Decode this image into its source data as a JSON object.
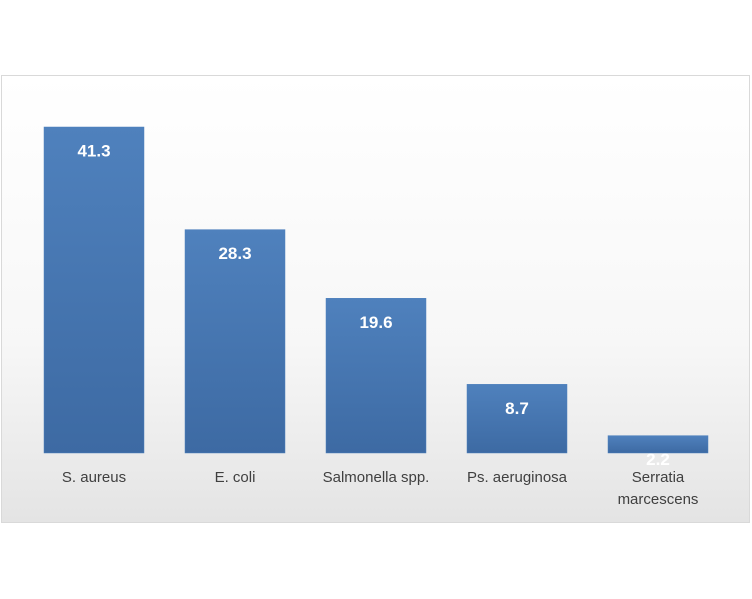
{
  "chart_data": {
    "type": "bar",
    "categories": [
      "S. aureus",
      "E. coli",
      "Salmonella spp.",
      "Ps. aeruginosa",
      "Serratia marcescens"
    ],
    "values": [
      41.3,
      28.3,
      19.6,
      8.7,
      2.2
    ],
    "color": "#4f81bd"
  }
}
